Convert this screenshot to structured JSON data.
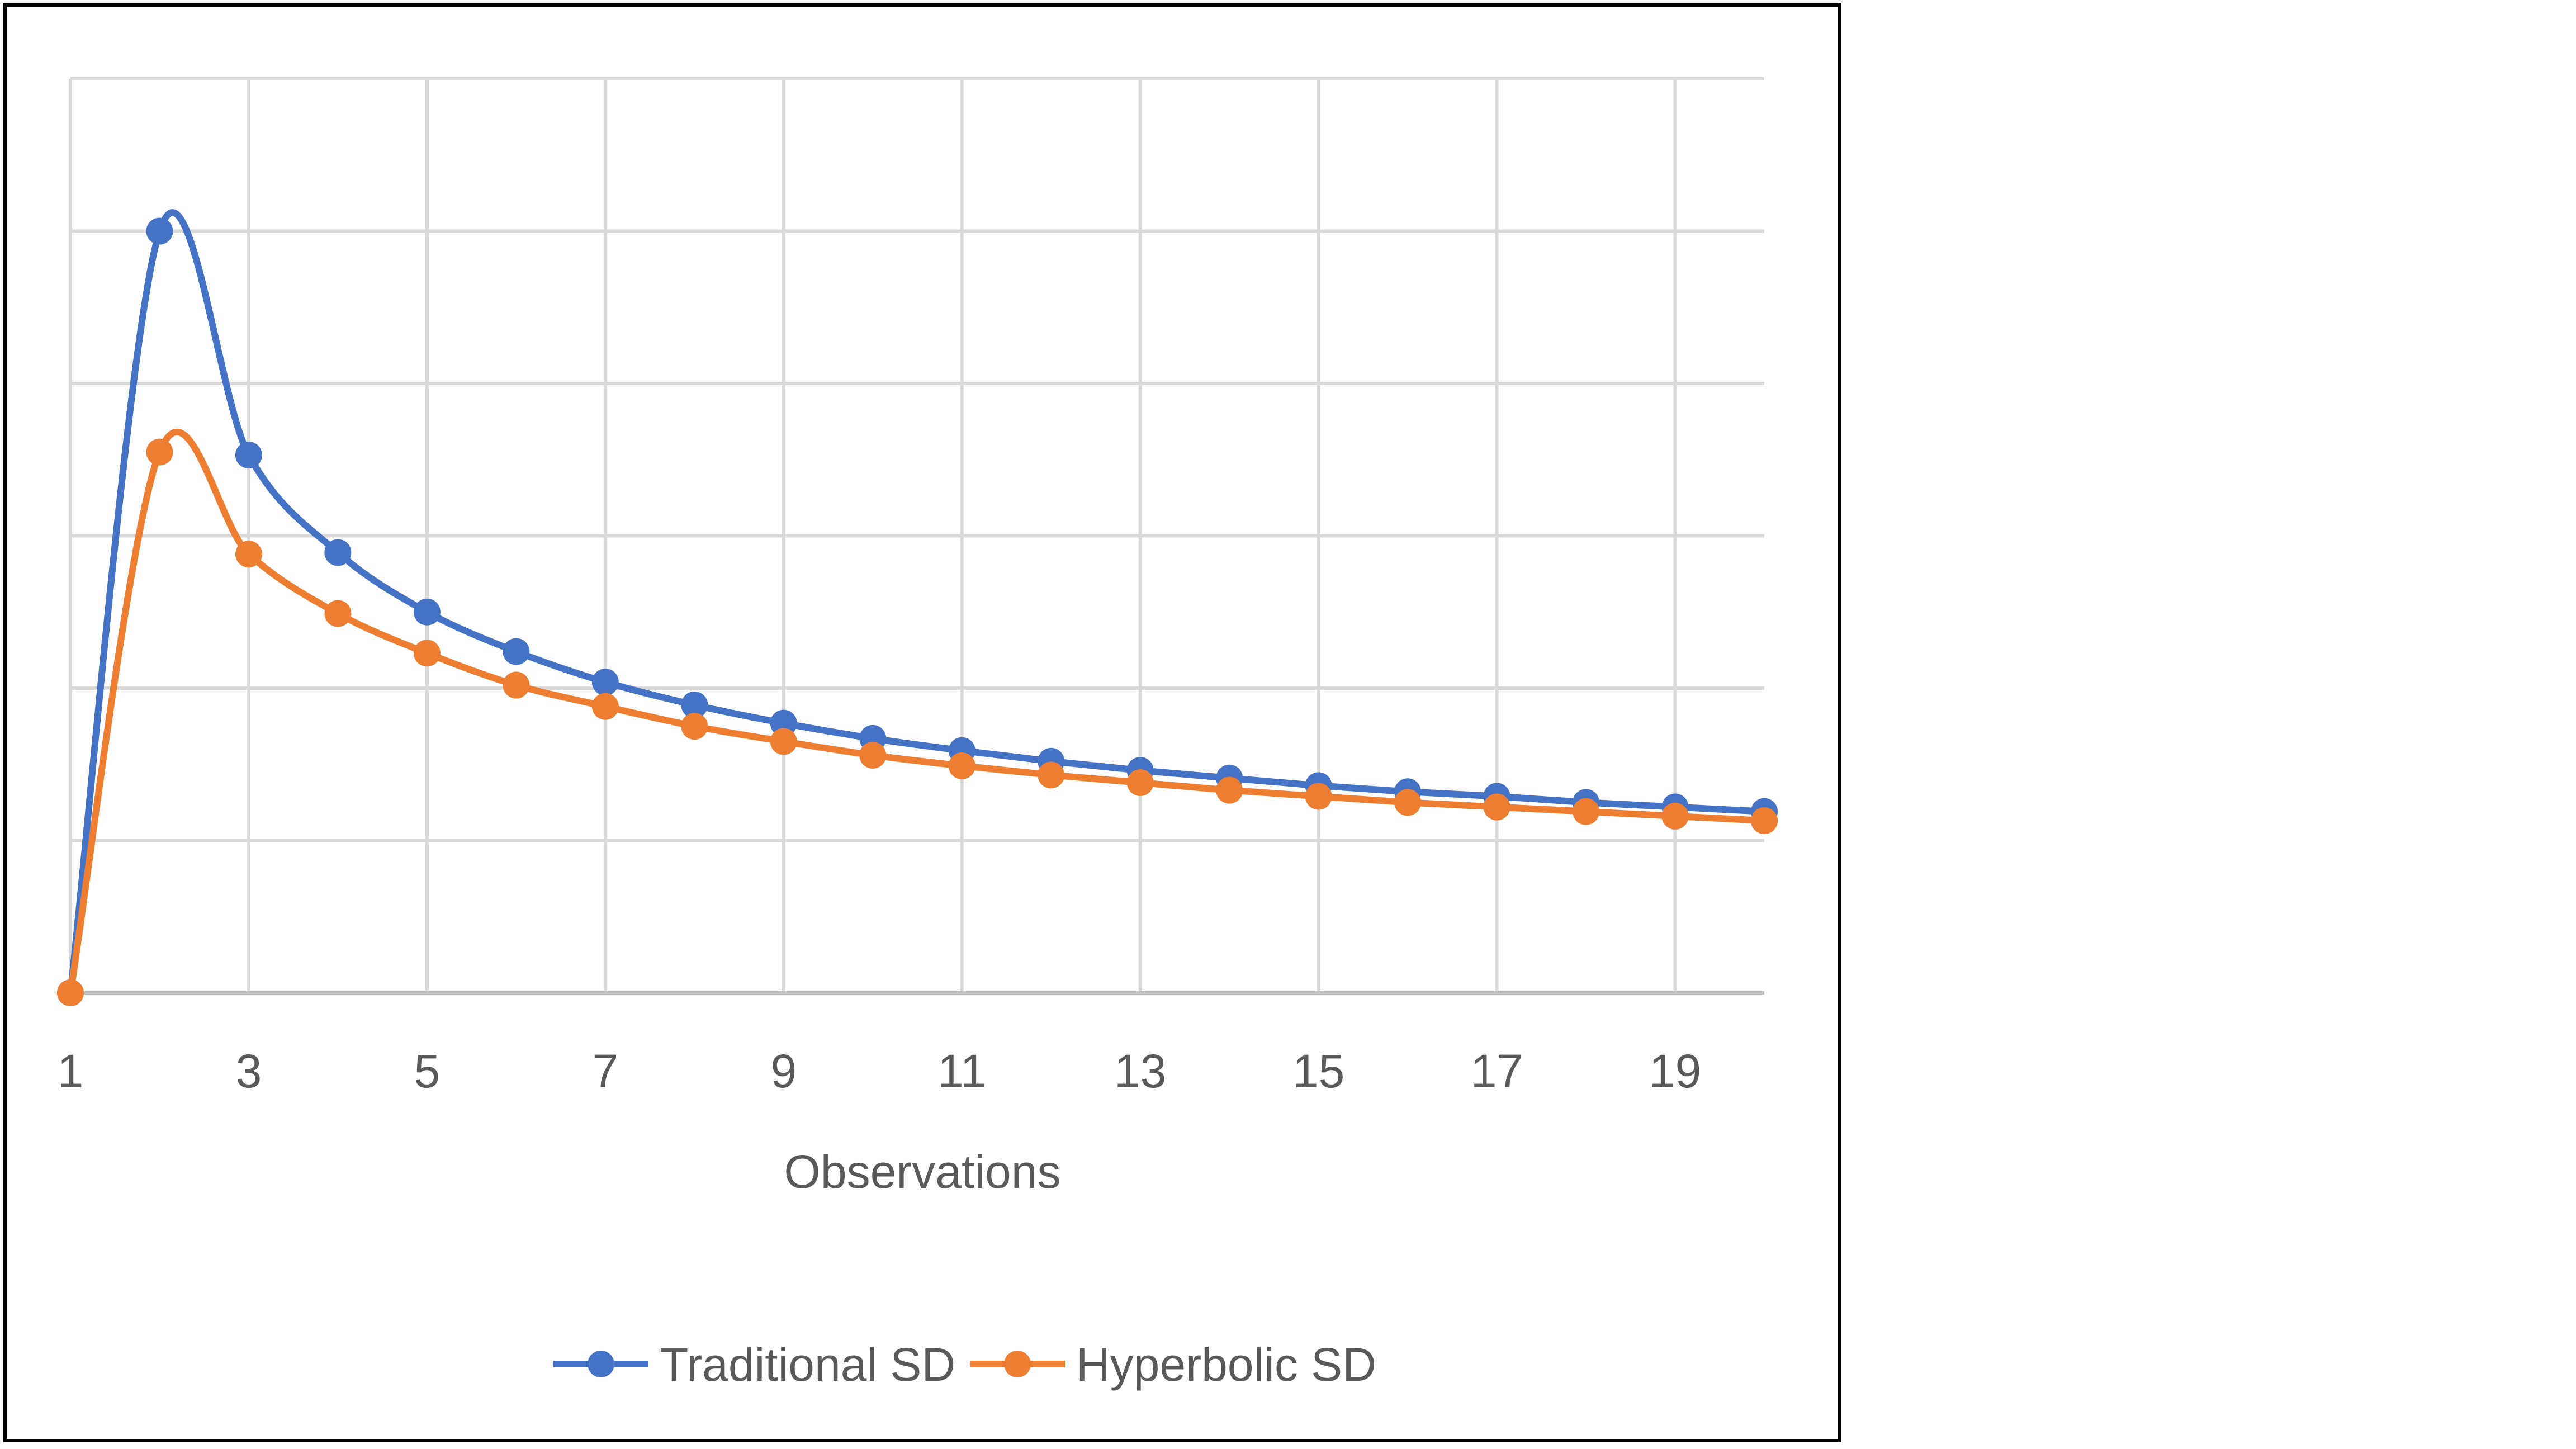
{
  "chart_data": {
    "type": "line",
    "title": "",
    "xlabel": "Observations",
    "ylabel": "",
    "x": [
      1,
      2,
      3,
      4,
      5,
      6,
      7,
      8,
      9,
      10,
      11,
      12,
      13,
      14,
      15,
      16,
      17,
      18,
      19,
      20
    ],
    "x_tick_labels": [
      "1",
      "3",
      "5",
      "7",
      "9",
      "11",
      "13",
      "15",
      "17",
      "19"
    ],
    "xlim": [
      1,
      20
    ],
    "ylim": [
      0,
      6
    ],
    "y_tick_labels_visible": false,
    "grid": true,
    "smooth": true,
    "legend_position": "bottom",
    "series": [
      {
        "name": "Traditional SD",
        "color": "#4472C4",
        "values": [
          0,
          5.0,
          3.53,
          2.89,
          2.5,
          2.24,
          2.04,
          1.89,
          1.77,
          1.67,
          1.59,
          1.52,
          1.46,
          1.41,
          1.36,
          1.32,
          1.29,
          1.25,
          1.22,
          1.19
        ]
      },
      {
        "name": "Hyperbolic SD",
        "color": "#ED7D31",
        "values": [
          0,
          3.55,
          2.88,
          2.49,
          2.23,
          2.02,
          1.88,
          1.75,
          1.65,
          1.56,
          1.49,
          1.43,
          1.38,
          1.33,
          1.29,
          1.25,
          1.22,
          1.19,
          1.16,
          1.13
        ]
      }
    ]
  }
}
